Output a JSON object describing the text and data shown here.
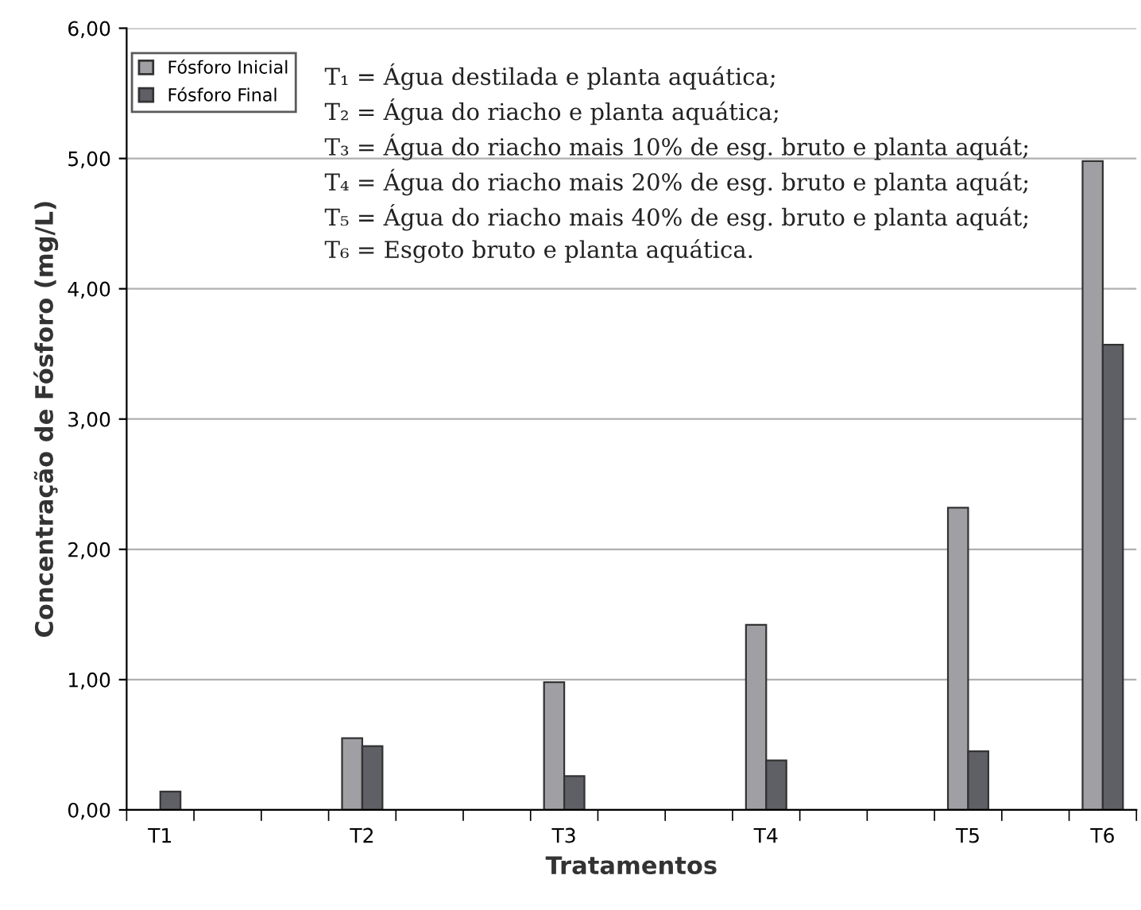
{
  "chart_data": {
    "type": "bar",
    "xlabel": "Tratamentos",
    "ylabel": "Concentração de Fósforo (mg/L)",
    "categories": [
      "T1",
      null,
      null,
      "T2",
      null,
      null,
      "T3",
      null,
      null,
      "T4",
      null,
      null,
      "T5",
      null,
      "T6"
    ],
    "series": [
      {
        "name": "Fósforo Inicial",
        "color": "#a0a0a4",
        "values": [
          null,
          null,
          null,
          0.55,
          null,
          null,
          0.98,
          null,
          null,
          1.42,
          null,
          null,
          2.32,
          null,
          4.98
        ]
      },
      {
        "name": "Fósforo Final",
        "color": "#5f5f66",
        "values": [
          0.14,
          null,
          null,
          0.49,
          null,
          null,
          0.26,
          null,
          null,
          0.38,
          null,
          null,
          0.45,
          null,
          3.57
        ]
      }
    ],
    "ylim": [
      0,
      6
    ],
    "yticks": [
      {
        "value": 0,
        "label": "0,00"
      },
      {
        "value": 1,
        "label": "1,00"
      },
      {
        "value": 2,
        "label": "2,00"
      },
      {
        "value": 3,
        "label": "3,00"
      },
      {
        "value": 4,
        "label": "4,00"
      },
      {
        "value": 5,
        "label": "5,00"
      },
      {
        "value": 6,
        "label": "6,00"
      }
    ],
    "grid": "y",
    "legend": "top left",
    "annotations": [
      "T₁ = Água destilada e planta aquática;",
      "T₂ = Água do riacho e planta aquática;",
      "T₃ = Água do riacho mais 10% de esg. bruto e planta aquát;",
      "T₄ = Água do riacho mais 20% de esg. bruto e planta aquát;",
      "T₅ = Água do riacho mais 40% de esg. bruto e planta aquát;",
      "T₆ = Esgoto bruto e planta aquática."
    ]
  }
}
